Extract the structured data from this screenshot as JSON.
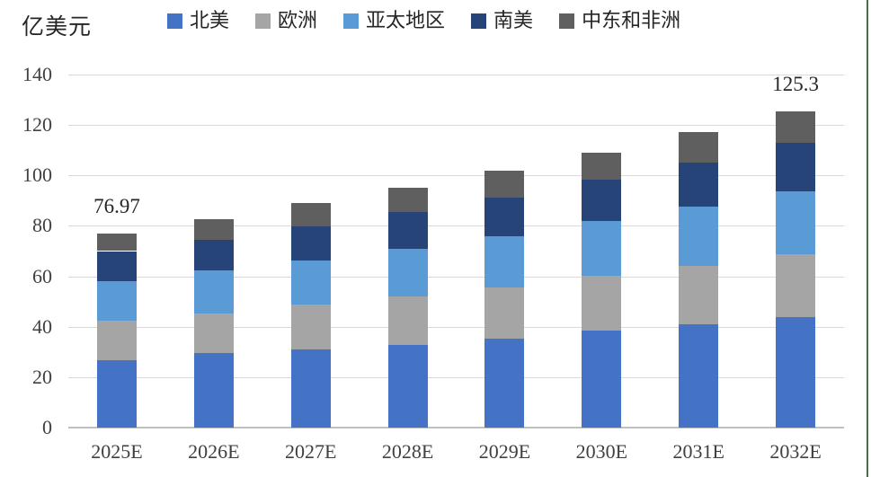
{
  "header": {
    "unit_label": "亿美元"
  },
  "legend": [
    {
      "label": "北美",
      "color": "#4472C4"
    },
    {
      "label": "欧洲",
      "color": "#A5A5A5"
    },
    {
      "label": "亚太地区",
      "color": "#5B9BD5"
    },
    {
      "label": "南美",
      "color": "#264478"
    },
    {
      "label": "中东和非洲",
      "color": "#5F5F5F"
    }
  ],
  "chart_data": {
    "type": "bar",
    "stacked": true,
    "unit_label": "亿美元",
    "categories": [
      "2025E",
      "2026E",
      "2027E",
      "2028E",
      "2029E",
      "2030E",
      "2031E",
      "2032E"
    ],
    "series": [
      {
        "name": "北美",
        "color": "#4472C4",
        "values": [
          26.8,
          29.4,
          31.1,
          32.9,
          35.3,
          38.5,
          40.9,
          43.8
        ]
      },
      {
        "name": "欧洲",
        "color": "#A5A5A5",
        "values": [
          15.6,
          16.0,
          17.8,
          19.1,
          20.2,
          21.7,
          23.2,
          25.0
        ]
      },
      {
        "name": "亚太地区",
        "color": "#5B9BD5",
        "values": [
          15.5,
          16.9,
          17.5,
          19.0,
          20.2,
          21.6,
          23.4,
          24.9
        ]
      },
      {
        "name": "南美",
        "color": "#264478",
        "values": [
          12.1,
          12.2,
          13.3,
          14.4,
          15.6,
          16.6,
          17.5,
          19.1
        ]
      },
      {
        "name": "中东和非洲",
        "color": "#5F5F5F",
        "values": [
          6.97,
          8.3,
          9.3,
          9.6,
          10.7,
          10.5,
          12.2,
          12.5
        ]
      }
    ],
    "totals": [
      76.97,
      82.8,
      89.0,
      95.0,
      102.0,
      108.9,
      117.2,
      125.3
    ],
    "total_labels": [
      {
        "category": "2025E",
        "text": "76.97"
      },
      {
        "category": "2032E",
        "text": "125.3"
      }
    ],
    "ylim": [
      0,
      140
    ],
    "ytick_step": 20,
    "yticks": [
      "0",
      "20",
      "40",
      "60",
      "80",
      "100",
      "120",
      "140"
    ],
    "grid": true,
    "legend_position": "top",
    "colors": {
      "gridline": "#D9D9D9",
      "axis_line": "#BFBFBF",
      "tick_text": "#404040",
      "label_text": "#262626"
    }
  }
}
